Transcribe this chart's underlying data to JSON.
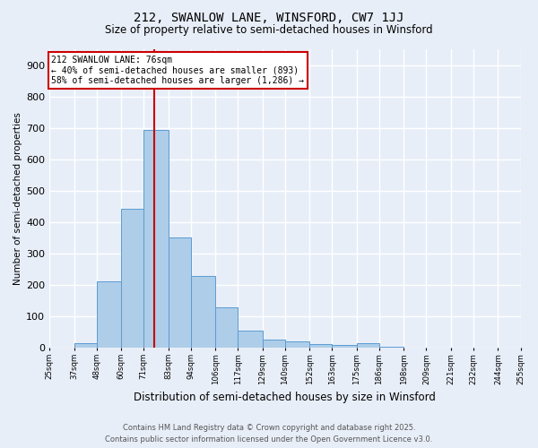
{
  "title1": "212, SWANLOW LANE, WINSFORD, CW7 1JJ",
  "title2": "Size of property relative to semi-detached houses in Winsford",
  "xlabel": "Distribution of semi-detached houses by size in Winsford",
  "ylabel": "Number of semi-detached properties",
  "annotation_line1": "212 SWANLOW LANE: 76sqm",
  "annotation_line2": "← 40% of semi-detached houses are smaller (893)",
  "annotation_line3": "58% of semi-detached houses are larger (1,286) →",
  "footer1": "Contains HM Land Registry data © Crown copyright and database right 2025.",
  "footer2": "Contains public sector information licensed under the Open Government Licence v3.0.",
  "property_size": 76,
  "bin_edges": [
    25,
    37,
    48,
    60,
    71,
    83,
    94,
    106,
    117,
    129,
    140,
    152,
    163,
    175,
    186,
    198,
    209,
    221,
    232,
    244,
    255
  ],
  "values": [
    2,
    15,
    213,
    443,
    693,
    350,
    230,
    128,
    55,
    25,
    20,
    13,
    8,
    15,
    3,
    2,
    1,
    1,
    0,
    0
  ],
  "tick_labels": [
    "25sqm",
    "37sqm",
    "48sqm",
    "60sqm",
    "71sqm",
    "83sqm",
    "94sqm",
    "106sqm",
    "117sqm",
    "129sqm",
    "140sqm",
    "152sqm",
    "163sqm",
    "175sqm",
    "186sqm",
    "198sqm",
    "209sqm",
    "221sqm",
    "232sqm",
    "244sqm",
    "255sqm"
  ],
  "bar_color": "#aecde8",
  "bar_edge_color": "#5b9bd5",
  "vline_color": "#cc0000",
  "annotation_box_color": "#cc0000",
  "background_color": "#e8eef8",
  "grid_color": "#ffffff",
  "ylim": [
    0,
    950
  ],
  "yticks": [
    0,
    100,
    200,
    300,
    400,
    500,
    600,
    700,
    800,
    900
  ]
}
